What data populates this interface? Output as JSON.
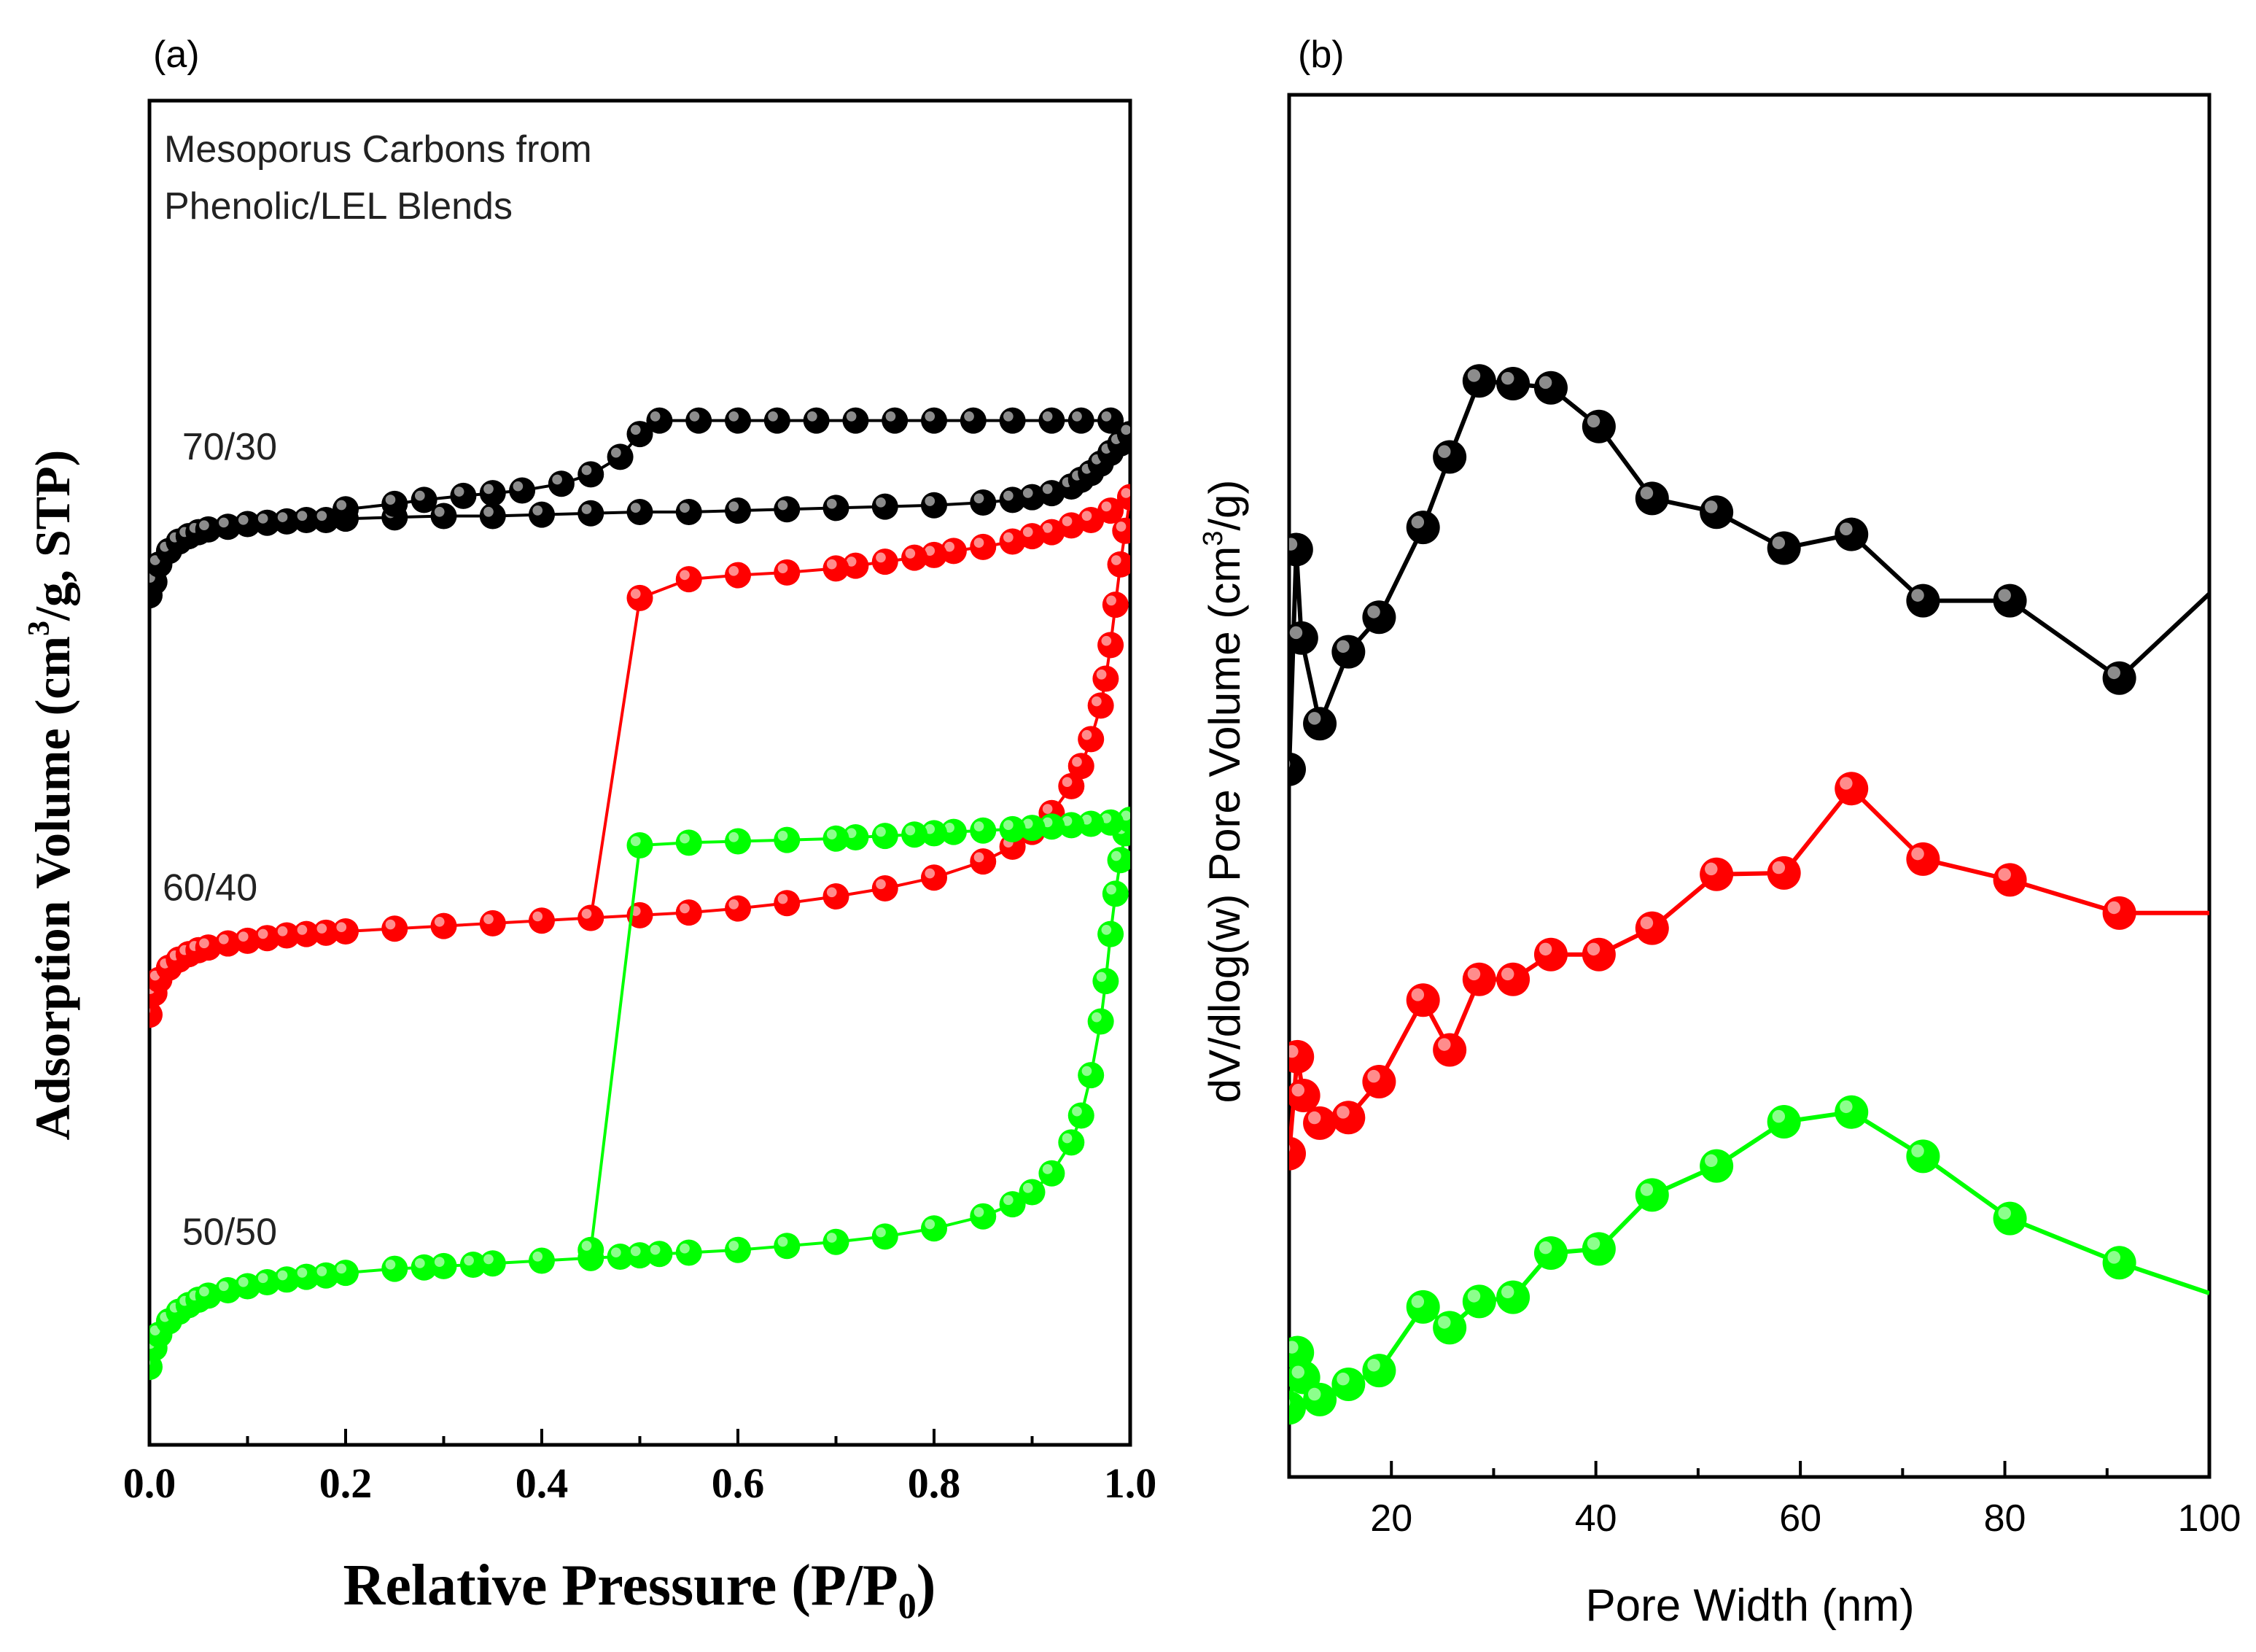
{
  "chart_data": [
    {
      "id": "a",
      "type": "line",
      "panel_label": "(a)",
      "annotation_lines": [
        "Mesoporus Carbons from",
        "Phenolic/LEL Blends"
      ],
      "xlabel": "Relative Pressure (P/P",
      "xlabel_sub": "0",
      "xlabel_close": ")",
      "ylabel": "Adsorption Volume (cm",
      "ylabel_sup": "3",
      "ylabel_tail": "/g, STP)",
      "xlim": [
        0,
        1.0
      ],
      "ylim": [
        0,
        100
      ],
      "y_ticks_shown": false,
      "x_ticks": [
        0.0,
        0.2,
        0.4,
        0.6,
        0.8,
        1.0
      ],
      "x_tick_labels": [
        "0.0",
        "0.2",
        "0.4",
        "0.6",
        "0.8",
        "1.0"
      ],
      "series": [
        {
          "name": "70/30",
          "color": "#000000",
          "label_pos": [
            0.02,
            73.3
          ],
          "adsorption": {
            "x": [
              0.0,
              0.005,
              0.01,
              0.02,
              0.03,
              0.04,
              0.05,
              0.06,
              0.08,
              0.1,
              0.12,
              0.14,
              0.16,
              0.18,
              0.2,
              0.25,
              0.3,
              0.35,
              0.4,
              0.45,
              0.5,
              0.55,
              0.6,
              0.65,
              0.7,
              0.75,
              0.8,
              0.85,
              0.88,
              0.9,
              0.92,
              0.94,
              0.95,
              0.96,
              0.97,
              0.98,
              0.99,
              1.0
            ],
            "y": [
              63.2,
              64.2,
              65.5,
              66.5,
              67.2,
              67.6,
              67.9,
              68.1,
              68.3,
              68.5,
              68.6,
              68.7,
              68.8,
              68.8,
              68.9,
              69.0,
              69.1,
              69.1,
              69.2,
              69.3,
              69.4,
              69.4,
              69.5,
              69.6,
              69.7,
              69.8,
              69.9,
              70.1,
              70.3,
              70.5,
              70.8,
              71.3,
              71.8,
              72.3,
              73.0,
              73.8,
              74.5,
              75.2
            ]
          },
          "desorption": {
            "x": [
              1.0,
              0.98,
              0.95,
              0.92,
              0.88,
              0.84,
              0.8,
              0.76,
              0.72,
              0.68,
              0.64,
              0.6,
              0.56,
              0.52,
              0.5,
              0.48,
              0.45,
              0.42,
              0.38,
              0.35,
              0.32,
              0.28,
              0.25,
              0.2
            ],
            "y": [
              75.2,
              76.2,
              76.2,
              76.2,
              76.2,
              76.2,
              76.2,
              76.2,
              76.2,
              76.2,
              76.2,
              76.2,
              76.2,
              76.2,
              75.2,
              73.5,
              72.2,
              71.5,
              71.0,
              70.8,
              70.6,
              70.3,
              70.0,
              69.6
            ]
          }
        },
        {
          "name": "60/40",
          "color": "#ff0000",
          "label_pos": [
            0.0,
            40.5
          ],
          "adsorption": {
            "x": [
              0.0,
              0.005,
              0.01,
              0.02,
              0.03,
              0.04,
              0.05,
              0.06,
              0.08,
              0.1,
              0.12,
              0.14,
              0.16,
              0.18,
              0.2,
              0.25,
              0.3,
              0.35,
              0.4,
              0.45,
              0.5,
              0.55,
              0.6,
              0.65,
              0.7,
              0.75,
              0.8,
              0.85,
              0.88,
              0.9,
              0.92,
              0.94,
              0.95,
              0.96,
              0.97,
              0.975,
              0.98,
              0.985,
              0.99,
              0.995,
              1.0
            ],
            "y": [
              32.0,
              33.6,
              34.6,
              35.5,
              36.1,
              36.5,
              36.8,
              37.0,
              37.3,
              37.5,
              37.7,
              37.9,
              38.0,
              38.1,
              38.2,
              38.4,
              38.6,
              38.8,
              39.0,
              39.2,
              39.4,
              39.6,
              39.9,
              40.3,
              40.8,
              41.4,
              42.2,
              43.4,
              44.5,
              45.6,
              47.0,
              49.0,
              50.5,
              52.5,
              55.0,
              57.0,
              59.5,
              62.5,
              65.5,
              68.0,
              70.5
            ]
          },
          "desorption": {
            "x": [
              1.0,
              0.98,
              0.96,
              0.94,
              0.92,
              0.9,
              0.88,
              0.85,
              0.82,
              0.8,
              0.78,
              0.75,
              0.72,
              0.7,
              0.65,
              0.6,
              0.55,
              0.5,
              0.45
            ],
            "y": [
              70.5,
              69.5,
              68.8,
              68.4,
              67.9,
              67.6,
              67.2,
              66.8,
              66.5,
              66.2,
              66.0,
              65.7,
              65.4,
              65.2,
              64.9,
              64.7,
              64.4,
              63.0,
              39.2
            ]
          }
        },
        {
          "name": "50/50",
          "color": "#00ff00",
          "label_pos": [
            0.02,
            14.9
          ],
          "adsorption": {
            "x": [
              0.0,
              0.005,
              0.01,
              0.02,
              0.03,
              0.04,
              0.05,
              0.06,
              0.08,
              0.1,
              0.12,
              0.14,
              0.16,
              0.18,
              0.2,
              0.25,
              0.28,
              0.3,
              0.33,
              0.35,
              0.4,
              0.45,
              0.48,
              0.5,
              0.52,
              0.55,
              0.6,
              0.65,
              0.7,
              0.75,
              0.8,
              0.85,
              0.88,
              0.9,
              0.92,
              0.94,
              0.95,
              0.96,
              0.97,
              0.975,
              0.98,
              0.985,
              0.99,
              0.995,
              1.0
            ],
            "y": [
              5.8,
              7.2,
              8.2,
              9.2,
              9.9,
              10.4,
              10.8,
              11.1,
              11.5,
              11.8,
              12.1,
              12.3,
              12.5,
              12.6,
              12.8,
              13.1,
              13.2,
              13.3,
              13.4,
              13.5,
              13.7,
              13.9,
              14.0,
              14.1,
              14.2,
              14.3,
              14.5,
              14.8,
              15.1,
              15.5,
              16.1,
              17.0,
              17.9,
              18.8,
              20.2,
              22.5,
              24.5,
              27.5,
              31.5,
              34.5,
              38.0,
              41.0,
              43.5,
              45.5,
              46.5
            ]
          },
          "desorption": {
            "x": [
              1.0,
              0.98,
              0.96,
              0.94,
              0.92,
              0.9,
              0.88,
              0.85,
              0.82,
              0.8,
              0.78,
              0.75,
              0.72,
              0.7,
              0.65,
              0.6,
              0.55,
              0.5,
              0.45
            ],
            "y": [
              46.5,
              46.3,
              46.2,
              46.1,
              46.0,
              45.9,
              45.8,
              45.7,
              45.6,
              45.5,
              45.4,
              45.3,
              45.2,
              45.1,
              45.0,
              44.9,
              44.8,
              44.6,
              14.5
            ]
          }
        }
      ]
    },
    {
      "id": "b",
      "type": "line",
      "panel_label": "(b)",
      "xlabel": "Pore Width (nm)",
      "ylabel": "dV/dlog(w) Pore Volume (cm",
      "ylabel_sup": "3",
      "ylabel_tail": "/g)",
      "xlim": [
        10,
        100
      ],
      "ylim": [
        0,
        100
      ],
      "y_ticks_shown": false,
      "x_ticks": [
        20,
        40,
        60,
        80,
        100
      ],
      "x_tick_labels": [
        "20",
        "40",
        "60",
        "80",
        "100"
      ],
      "series": [
        {
          "name": "black",
          "color": "#000000",
          "x": [
            10,
            10.7,
            11.2,
            13.0,
            15.8,
            18.8,
            23.1,
            25.7,
            28.6,
            31.9,
            35.6,
            40.3,
            45.5,
            51.8,
            58.4,
            65.0,
            72.0,
            80.5,
            91.2,
            100
          ],
          "y": [
            51.2,
            67.1,
            60.7,
            54.5,
            59.7,
            62.2,
            68.7,
            73.8,
            79.3,
            79.1,
            78.8,
            76.0,
            70.8,
            69.8,
            67.2,
            68.2,
            63.4,
            63.4,
            57.8,
            63.9
          ]
        },
        {
          "name": "red",
          "color": "#ff0000",
          "x": [
            10,
            10.8,
            11.4,
            13.0,
            15.8,
            18.8,
            23.1,
            25.7,
            28.6,
            31.9,
            35.6,
            40.3,
            45.5,
            51.8,
            58.4,
            65.0,
            72.0,
            80.5,
            91.2,
            100
          ],
          "y": [
            23.4,
            30.4,
            27.6,
            25.6,
            26.0,
            28.6,
            34.5,
            30.9,
            36.0,
            36.0,
            37.8,
            37.8,
            39.7,
            43.6,
            43.7,
            49.8,
            44.7,
            43.2,
            40.8,
            40.8
          ]
        },
        {
          "name": "green",
          "color": "#00ff00",
          "x": [
            10,
            10.8,
            11.4,
            13.0,
            15.8,
            18.8,
            23.1,
            25.7,
            28.6,
            31.9,
            35.6,
            40.3,
            45.5,
            51.8,
            58.4,
            65.0,
            72.0,
            80.5,
            91.2,
            100
          ],
          "y": [
            5.0,
            9.0,
            7.2,
            5.6,
            6.7,
            7.7,
            12.3,
            10.8,
            12.7,
            13.0,
            16.2,
            16.5,
            20.4,
            22.5,
            25.7,
            26.4,
            23.2,
            18.7,
            15.5,
            13.3
          ]
        }
      ]
    }
  ]
}
